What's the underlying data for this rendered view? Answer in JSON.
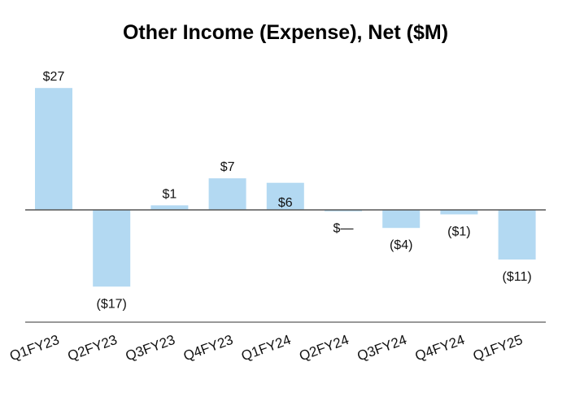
{
  "chart_data": {
    "type": "bar",
    "title": "Other Income (Expense), Net ($M)",
    "xlabel": "",
    "ylabel": "",
    "categories": [
      "Q1FY23",
      "Q2FY23",
      "Q3FY23",
      "Q4FY23",
      "Q1FY24",
      "Q2FY24",
      "Q3FY24",
      "Q4FY24",
      "Q1FY25"
    ],
    "values": [
      27,
      -17,
      1,
      7,
      6,
      -0.3,
      -4,
      -1,
      -11
    ],
    "data_labels": [
      "$27",
      "($17)",
      "$1",
      "$7",
      "$6",
      "$—",
      "($4)",
      "($1)",
      "($11)"
    ],
    "ylim": [
      -25,
      35
    ],
    "grid": false,
    "legend": "none",
    "colors": {
      "bar": "#b3d9f2",
      "zero_line": "#555555",
      "baseline": "#999999"
    }
  }
}
